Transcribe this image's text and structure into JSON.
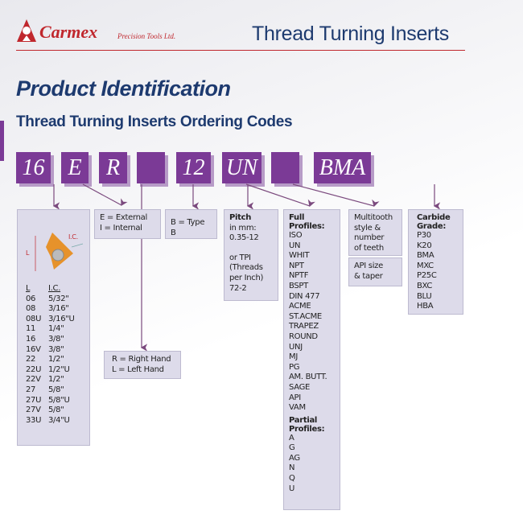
{
  "header": {
    "brand": "Carmex",
    "brand_sub": "Precision Tools Ltd.",
    "title": "Thread Turning Inserts"
  },
  "page": {
    "title": "Product Identification",
    "subtitle": "Thread Turning Inserts Ordering Codes"
  },
  "codes": [
    "16",
    "E",
    "R",
    "",
    "12",
    "UN",
    "",
    "BMA"
  ],
  "colors": {
    "code_box": "#7b3a96",
    "title": "#1d3a6f",
    "brand": "#c0272d",
    "panel": "#dddbea"
  },
  "size_panel": {
    "label_L": "L",
    "label_IC": "I.C.",
    "col_L": "L",
    "col_IC": "I.C.",
    "rows": [
      [
        "06",
        "5/32\""
      ],
      [
        "08",
        "3/16\""
      ],
      [
        "08U",
        "3/16\"U"
      ],
      [
        "11",
        "1/4\""
      ],
      [
        "16",
        "3/8\""
      ],
      [
        "16V",
        "3/8\""
      ],
      [
        "22",
        "1/2\""
      ],
      [
        "22U",
        "1/2\"U"
      ],
      [
        "22V",
        "1/2\""
      ],
      [
        "27",
        "5/8\""
      ],
      [
        "27U",
        "5/8\"U"
      ],
      [
        "27V",
        "5/8\""
      ],
      [
        "33U",
        "3/4\"U"
      ]
    ]
  },
  "type_panel": {
    "line1": "E = External",
    "line2": "I = Internal"
  },
  "hand_panel": {
    "line1": "R = Right Hand",
    "line2": "L = Left Hand"
  },
  "b_panel": {
    "text": "B = Type B"
  },
  "pitch_panel": {
    "title": "Pitch",
    "l1": "in mm:",
    "l2": "0.35-12",
    "l3": "or TPI",
    "l4": "(Threads",
    "l5": "per Inch)",
    "l6": "72-2"
  },
  "profile_panel": {
    "full_title_1": "Full",
    "full_title_2": "Profiles:",
    "full": [
      "ISO",
      "UN",
      "WHIT",
      "NPT",
      "NPTF",
      "BSPT",
      "DIN 477",
      "ACME",
      "ST.ACME",
      "TRAPEZ",
      "ROUND",
      "UNJ",
      "MJ",
      "PG",
      "AM. BUTT.",
      "SAGE",
      "API",
      "VAM"
    ],
    "partial_title_1": "Partial",
    "partial_title_2": "Profiles:",
    "partial": [
      "A",
      "G",
      "AG",
      "N",
      "Q",
      "U"
    ]
  },
  "multi_panel": {
    "l1": "Multitooth",
    "l2": "style &",
    "l3": "number",
    "l4": "of teeth"
  },
  "api_panel": {
    "l1": "API size",
    "l2": "& taper"
  },
  "grade_panel": {
    "title_1": "Carbide",
    "title_2": "Grade:",
    "items": [
      "P30",
      "K20",
      "BMA",
      "MXC",
      "P25C",
      "BXC",
      "BLU",
      "HBA"
    ]
  }
}
